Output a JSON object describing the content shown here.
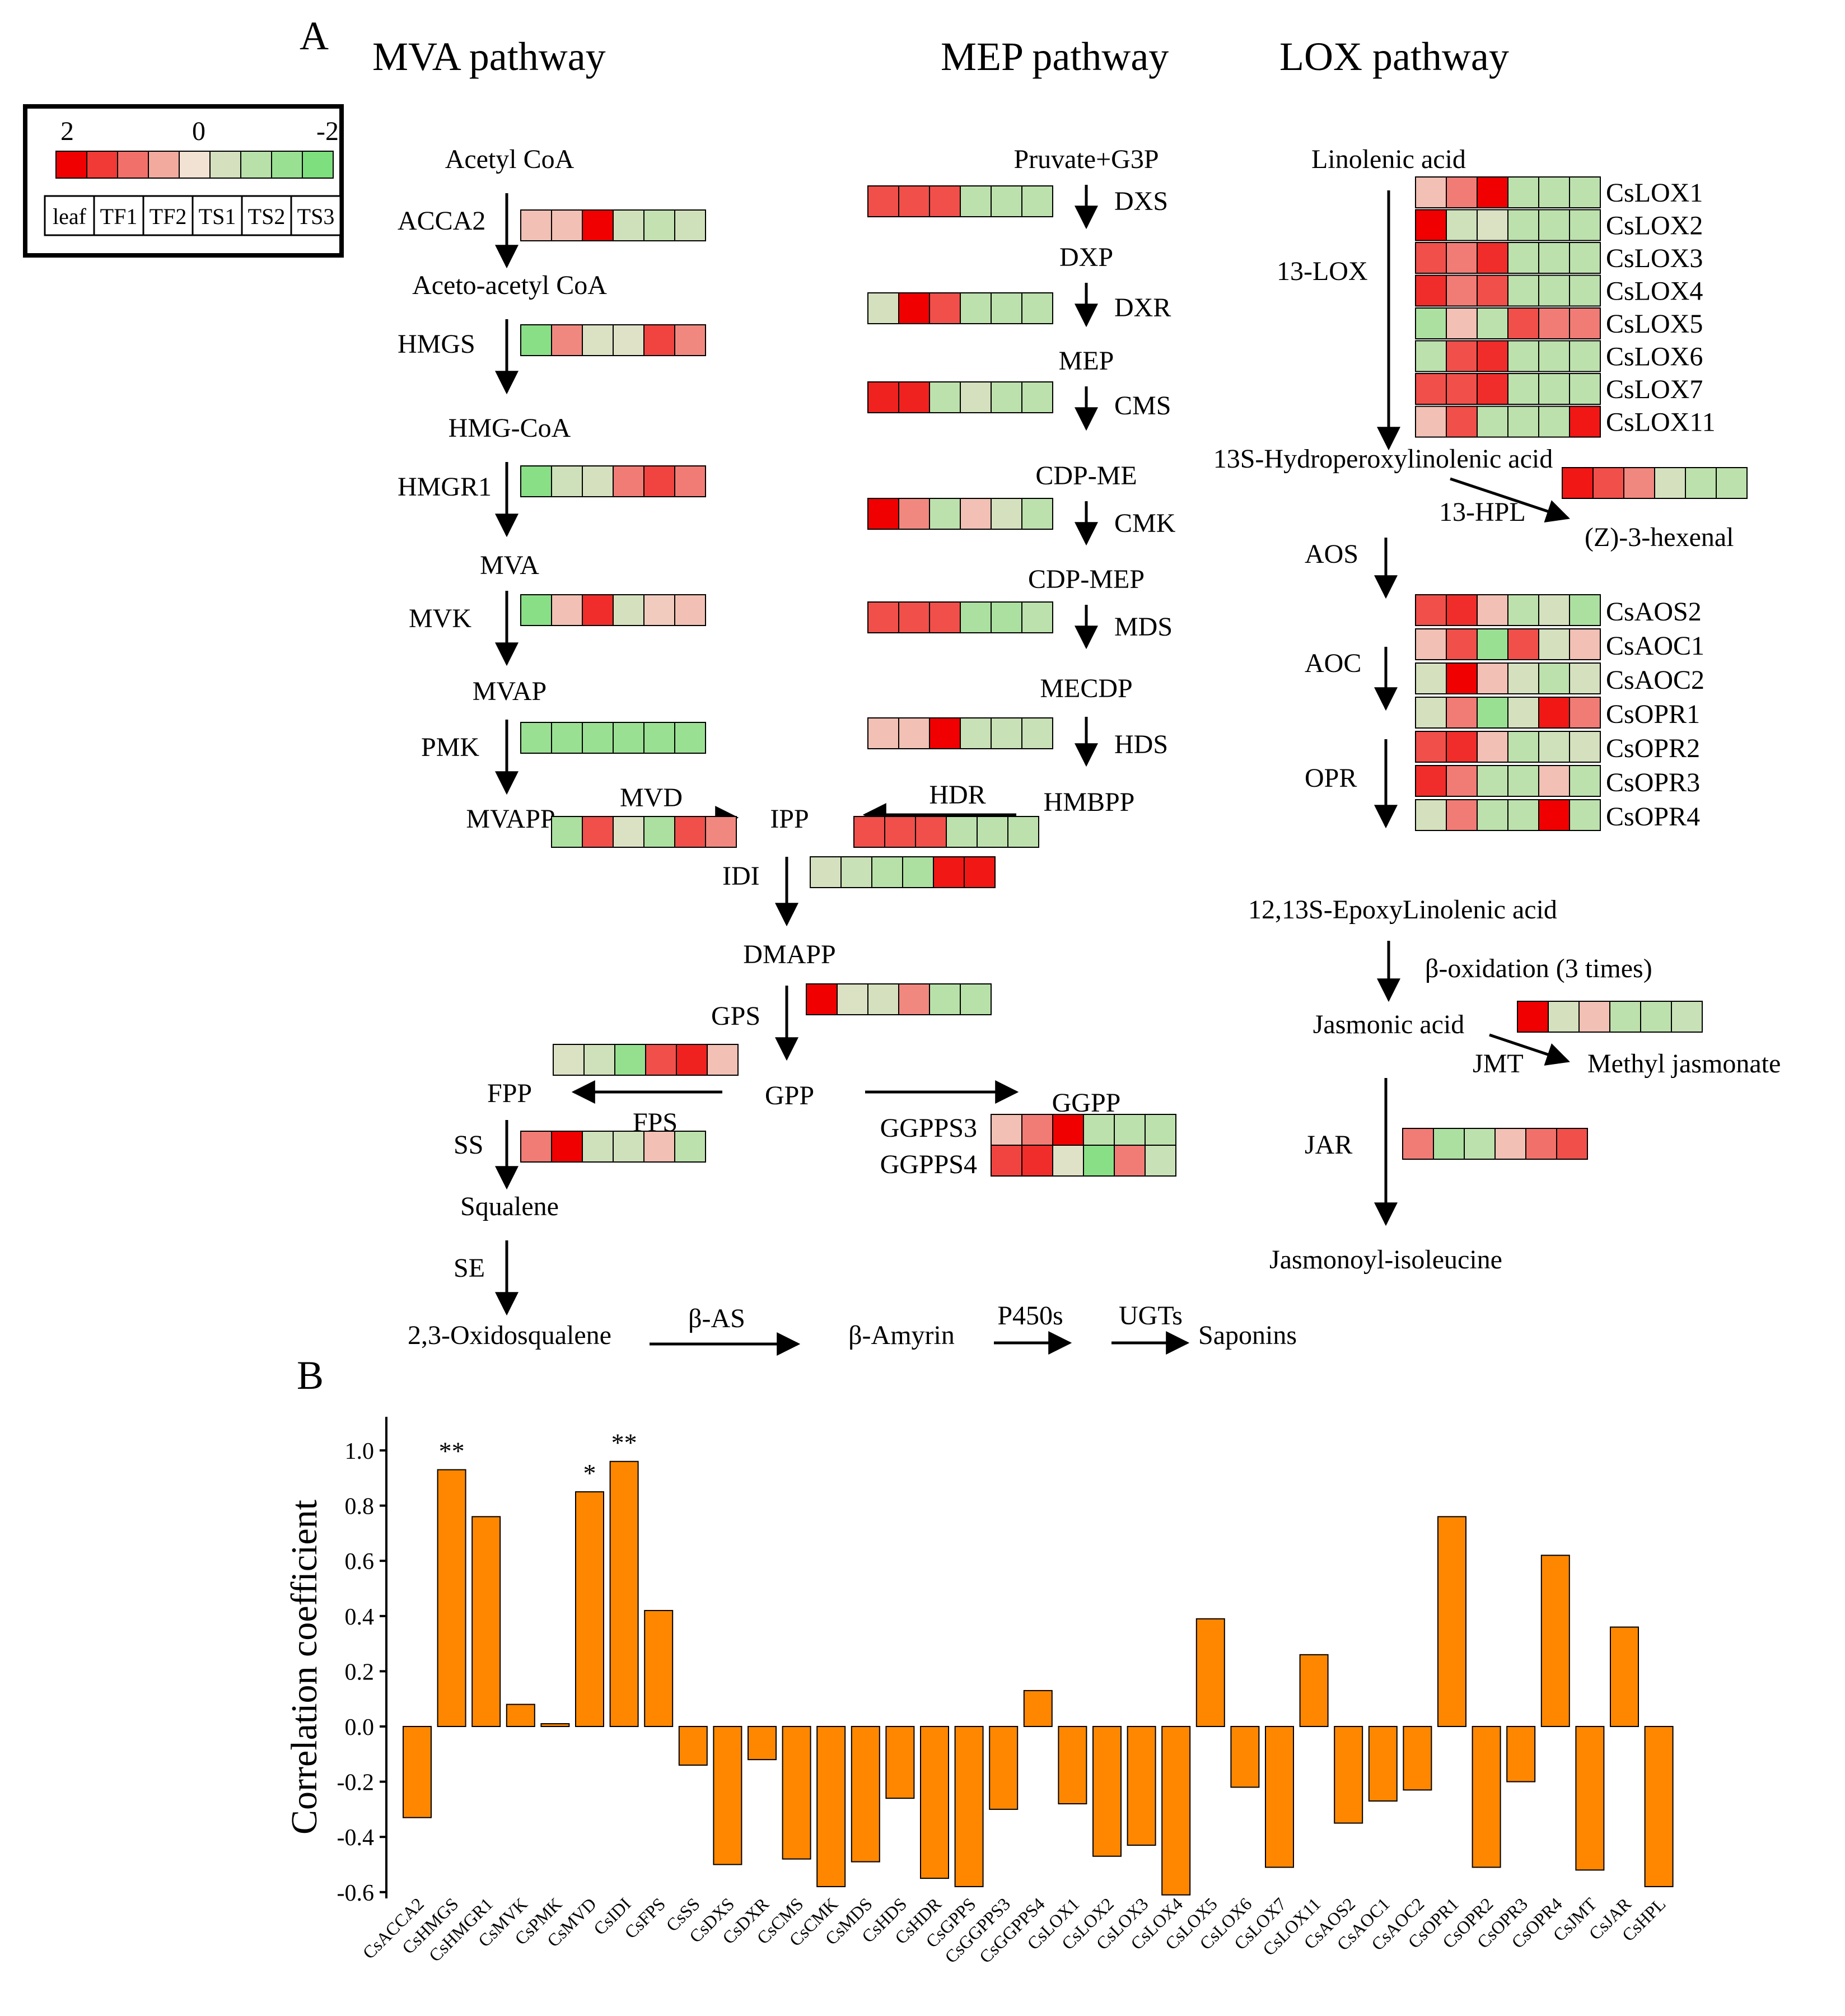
{
  "panel_labels": {
    "a": "A",
    "b": "B"
  },
  "pathway_titles": {
    "mva": "MVA pathway",
    "mep": "MEP pathway",
    "lox": "LOX pathway"
  },
  "legend": {
    "high": "2",
    "mid": "0",
    "low": "-2",
    "scale_levels": [
      2,
      1.5,
      1,
      0.5,
      0,
      -0.5,
      -1,
      -1.5,
      -2
    ],
    "samples": [
      "leaf",
      "TF1",
      "TF2",
      "TS1",
      "TS2",
      "TS3"
    ]
  },
  "colors": {
    "up_max": "#f00000",
    "neutral": "#f2e2d4",
    "down_max": "#7ddf7d",
    "bar_fill": "#ff8700",
    "bar_edge": "#000000"
  },
  "mva": {
    "metabolites": [
      "Acetyl CoA",
      "Aceto-acetyl CoA",
      "HMG-CoA",
      "MVA",
      "MVAP",
      "MVAPP"
    ],
    "enzymes": [
      "ACCA2",
      "HMGS",
      "HMGR1",
      "MVK",
      "PMK"
    ],
    "mvd": "MVD",
    "expression": {
      "ACCA2": [
        0.3,
        0.3,
        2.0,
        -0.6,
        -0.8,
        -0.6
      ],
      "HMGS": [
        -1.8,
        0.8,
        -0.4,
        -0.3,
        1.4,
        0.8
      ],
      "HMGR1": [
        -1.8,
        -0.6,
        -0.5,
        0.9,
        1.4,
        0.9
      ],
      "MVK": [
        -1.8,
        0.3,
        1.6,
        -0.5,
        0.2,
        0.3
      ],
      "PMK": [
        -1.5,
        -1.5,
        -1.5,
        -1.5,
        -1.5,
        -1.5
      ],
      "MVD": [
        -1.2,
        1.3,
        -0.4,
        -1.2,
        1.3,
        0.8
      ]
    }
  },
  "mep": {
    "metabolites": [
      "Pruvate+G3P",
      "DXP",
      "MEP",
      "CDP-ME",
      "CDP-MEP",
      "MECDP",
      "HMBPP"
    ],
    "enzymes": [
      "DXS",
      "DXR",
      "CMS",
      "CMK",
      "MDS",
      "HDS"
    ],
    "hdr": "HDR",
    "expression": {
      "DXS": [
        1.3,
        1.3,
        1.3,
        -0.9,
        -0.9,
        -0.9
      ],
      "DXR": [
        -0.5,
        2.0,
        1.3,
        -0.9,
        -0.9,
        -0.9
      ],
      "CMS": [
        1.7,
        1.7,
        -0.9,
        -0.5,
        -0.9,
        -0.9
      ],
      "CMK": [
        2.0,
        0.8,
        -0.9,
        0.3,
        -0.5,
        -0.9
      ],
      "MDS": [
        1.3,
        1.3,
        1.3,
        -1.2,
        -1.2,
        -0.9
      ],
      "HDS": [
        0.3,
        0.3,
        2.0,
        -0.7,
        -0.7,
        -0.7
      ],
      "HDR": [
        1.3,
        1.3,
        1.3,
        -0.9,
        -0.9,
        -0.9
      ]
    }
  },
  "core": {
    "ipp": "IPP",
    "idi": "IDI",
    "dmapp": "DMAPP",
    "gps": "GPS",
    "gpp": "GPP",
    "fpp": "FPP",
    "fps": "FPS",
    "ss": "SS",
    "squalene": "Squalene",
    "se": "SE",
    "oxidosqualene": "2,3-Oxidosqualene",
    "bas": "β-AS",
    "amyrin": "β-Amyrin",
    "p450": "P450s",
    "ugts": "UGTs",
    "saponins": "Saponins",
    "ggpp": "GGPP",
    "ggpps3": "GGPPS3",
    "ggpps4": "GGPPS4",
    "expression": {
      "IDI": [
        -0.5,
        -0.7,
        -1.0,
        -1.2,
        1.8,
        1.8
      ],
      "GPS": [
        2.0,
        -0.4,
        -0.5,
        0.8,
        -1.0,
        -1.0
      ],
      "FPS": [
        -0.4,
        -0.6,
        -1.6,
        1.3,
        1.7,
        0.3
      ],
      "SS": [
        0.9,
        2.0,
        -0.6,
        -0.6,
        0.3,
        -0.9
      ],
      "GGPPS3": [
        0.3,
        0.9,
        2.0,
        -0.9,
        -0.9,
        -0.9
      ],
      "GGPPS4": [
        1.4,
        1.6,
        -0.3,
        -1.8,
        0.9,
        -0.7
      ]
    }
  },
  "lox": {
    "linolenic": "Linolenic acid",
    "lox13": "13-LOX",
    "hpo": "13S-Hydroperoxylinolenic acid",
    "hpl": "13-HPL",
    "hexenal": "(Z)-3-hexenal",
    "aos": "AOS",
    "aoc": "AOC",
    "opr": "OPR",
    "epoxy": "12,13S-EpoxyLinolenic acid",
    "beta_ox": "β-oxidation (3 times)",
    "ja": "Jasmonic acid",
    "jmt": "JMT",
    "meja": "Methyl jasmonate",
    "jar": "JAR",
    "ja_ile": "Jasmonoyl-isoleucine",
    "lox_genes": [
      "CsLOX1",
      "CsLOX2",
      "CsLOX3",
      "CsLOX4",
      "CsLOX5",
      "CsLOX6",
      "CsLOX7",
      "CsLOX11"
    ],
    "lox_expression": [
      [
        0.3,
        0.9,
        2.0,
        -0.9,
        -0.9,
        -0.9
      ],
      [
        2.0,
        -0.6,
        -0.4,
        -0.9,
        -0.9,
        -0.9
      ],
      [
        1.3,
        0.9,
        1.6,
        -0.9,
        -0.9,
        -0.9
      ],
      [
        1.6,
        0.9,
        1.3,
        -0.9,
        -0.9,
        -0.9
      ],
      [
        -1.2,
        0.3,
        -0.9,
        1.3,
        0.9,
        0.9
      ],
      [
        -0.9,
        1.3,
        1.6,
        -0.9,
        -0.9,
        -0.9
      ],
      [
        1.3,
        1.3,
        1.6,
        -0.9,
        -0.9,
        -0.9
      ],
      [
        0.3,
        1.3,
        -0.9,
        -0.9,
        -0.9,
        1.8
      ]
    ],
    "hpl_expression": [
      1.8,
      1.3,
      0.8,
      -0.5,
      -0.9,
      -0.9
    ],
    "jasmonate_genes": [
      "CsAOS2",
      "CsAOC1",
      "CsAOC2",
      "CsOPR1",
      "CsOPR2",
      "CsOPR3",
      "CsOPR4"
    ],
    "jasmonate_expression": [
      [
        1.3,
        1.6,
        0.3,
        -0.9,
        -0.5,
        -1.2
      ],
      [
        0.3,
        1.3,
        -1.5,
        1.3,
        -0.5,
        0.3
      ],
      [
        -0.5,
        2.0,
        0.3,
        -0.5,
        -0.9,
        -0.5
      ],
      [
        -0.5,
        0.9,
        -1.5,
        -0.5,
        1.8,
        0.9
      ],
      [
        1.3,
        1.6,
        0.3,
        -0.9,
        -0.6,
        -0.5
      ],
      [
        1.6,
        0.9,
        -0.9,
        -0.9,
        0.3,
        -0.9
      ],
      [
        -0.5,
        0.9,
        -0.9,
        -0.9,
        2.0,
        -0.9
      ]
    ],
    "jmt_expression": [
      2.0,
      -0.5,
      0.3,
      -0.9,
      -0.9,
      -0.7
    ],
    "jar_expression": [
      0.9,
      -1.2,
      -0.9,
      0.3,
      1.0,
      1.3
    ]
  },
  "chart_data": {
    "type": "bar",
    "title": "",
    "xlabel": "",
    "ylabel": "Correlation coefficient",
    "ylim": [
      -0.65,
      1.1
    ],
    "yticks": [
      1.0,
      0.8,
      0.6,
      0.4,
      0.2,
      0.0,
      -0.2,
      -0.4,
      -0.6
    ],
    "ytick_labels": [
      "1.0",
      "0.8",
      "0.6",
      "0.4",
      "0.2",
      "0.0",
      "-0.2",
      "-0.4",
      "-0.6"
    ],
    "categories": [
      "CsACCA2",
      "CsHMGS",
      "CsHMGR1",
      "CsMVK",
      "CsPMK",
      "CsMVD",
      "CsIDI",
      "CsFPS",
      "CsSS",
      "CsDXS",
      "CsDXR",
      "CsCMS",
      "CsCMK",
      "CsMDS",
      "CsHDS",
      "CsHDR",
      "CsGPPS",
      "CsGGPPS3",
      "CsGGPPS4",
      "CsLOX1",
      "CsLOX2",
      "CsLOX3",
      "CsLOX4",
      "CsLOX5",
      "CsLOX6",
      "CsLOX7",
      "CsLOX11",
      "CsAOS2",
      "CsAOC1",
      "CsAOC2",
      "CsOPR1",
      "CsOPR2",
      "CsOPR3",
      "CsOPR4",
      "CsJMT",
      "CsJAR",
      "CsHPL"
    ],
    "values": [
      -0.33,
      0.93,
      0.76,
      0.08,
      0.01,
      0.85,
      0.96,
      0.42,
      -0.14,
      -0.5,
      -0.12,
      -0.48,
      -0.58,
      -0.49,
      -0.26,
      -0.55,
      -0.58,
      -0.3,
      0.13,
      -0.28,
      -0.47,
      -0.43,
      -0.61,
      0.39,
      -0.22,
      -0.51,
      0.26,
      -0.35,
      -0.27,
      -0.23,
      0.76,
      -0.51,
      -0.2,
      0.62,
      -0.52,
      0.36,
      -0.58
    ],
    "significance": [
      "",
      "**",
      "",
      "",
      "",
      "*",
      "**",
      "",
      "",
      "",
      "",
      "",
      "",
      "",
      "",
      "",
      "",
      "",
      "",
      "",
      "",
      "",
      "",
      "",
      "",
      "",
      "",
      "",
      "",
      "",
      "",
      "",
      "",
      "",
      "",
      "",
      ""
    ]
  }
}
